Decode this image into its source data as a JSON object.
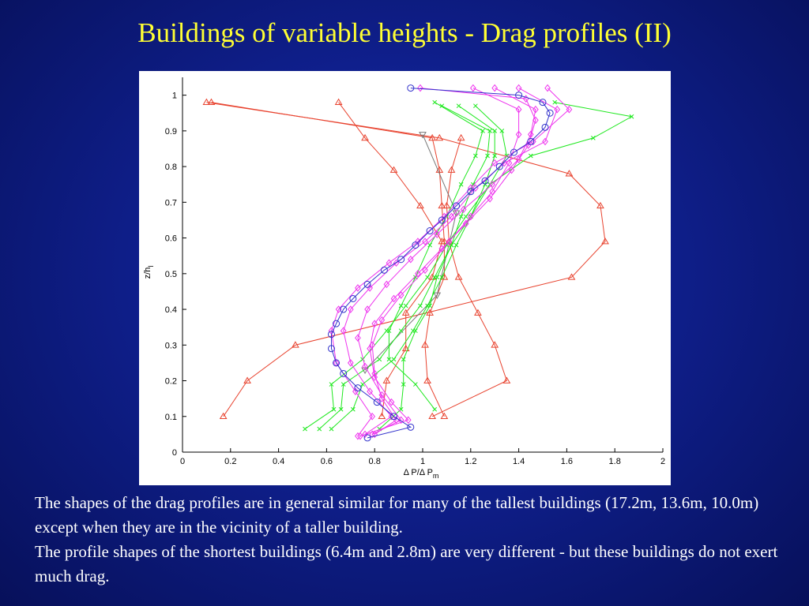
{
  "slide": {
    "title": "Buildings of variable heights - Drag profiles (II)",
    "paragraphs": [
      "The shapes of the drag profiles are in general similar for many of the tallest buildings (17.2m, 13.6m, 10.0m) except when they are in the vicinity of a taller building.",
      "The profile shapes of the shortest buildings (6.4m and 2.8m) are very different - but these buildings do not exert much drag."
    ]
  },
  "colors": {
    "background": "#0f1f8c",
    "title": "#ffff33",
    "text": "#ffffff",
    "red": "#e8432f",
    "green": "#1ee81e",
    "magenta": "#ee33ee",
    "blue": "#3333cc",
    "gray": "#777777"
  },
  "chart_data": {
    "type": "line",
    "title": "",
    "xlabel": "Δ P/Δ P",
    "xlabel_sub": "m",
    "ylabel": "z/h",
    "ylabel_sub": "l",
    "xlim": [
      0,
      2
    ],
    "ylim": [
      0,
      1.05
    ],
    "xticks": [
      "0",
      "0.2",
      "0.4",
      "0.6",
      "0.8",
      "1",
      "1.2",
      "1.4",
      "1.6",
      "1.8",
      "2"
    ],
    "yticks": [
      "0",
      "0.1",
      "0.2",
      "0.3",
      "0.4",
      "0.5",
      "0.6",
      "0.7",
      "0.8",
      "0.9",
      "1"
    ],
    "grid": false,
    "series": [
      {
        "color": "#e8432f",
        "marker": "triangle",
        "points": [
          [
            0.17,
            0.1
          ],
          [
            0.27,
            0.2
          ],
          [
            0.47,
            0.3
          ],
          [
            1.62,
            0.49
          ],
          [
            1.76,
            0.59
          ],
          [
            1.74,
            0.69
          ],
          [
            1.61,
            0.78
          ],
          [
            1.07,
            0.88
          ],
          [
            0.1,
            0.98
          ]
        ]
      },
      {
        "color": "#e8432f",
        "marker": "triangle",
        "points": [
          [
            0.83,
            0.1
          ],
          [
            0.85,
            0.2
          ],
          [
            0.93,
            0.29
          ],
          [
            0.93,
            0.39
          ],
          [
            1.04,
            0.49
          ],
          [
            1.08,
            0.59
          ],
          [
            0.99,
            0.69
          ],
          [
            0.88,
            0.79
          ],
          [
            0.76,
            0.88
          ],
          [
            0.65,
            0.98
          ]
        ]
      },
      {
        "color": "#e8432f",
        "marker": "triangle",
        "points": [
          [
            1.09,
            0.1
          ],
          [
            1.02,
            0.2
          ],
          [
            1.01,
            0.3
          ],
          [
            1.03,
            0.39
          ],
          [
            1.09,
            0.49
          ],
          [
            1.09,
            0.59
          ],
          [
            1.08,
            0.69
          ],
          [
            1.07,
            0.79
          ],
          [
            1.04,
            0.88
          ],
          [
            0.12,
            0.98
          ]
        ]
      },
      {
        "color": "#e8432f",
        "marker": "triangle",
        "points": [
          [
            1.04,
            0.1
          ],
          [
            1.35,
            0.2
          ],
          [
            1.3,
            0.3
          ],
          [
            1.23,
            0.39
          ],
          [
            1.15,
            0.49
          ],
          [
            1.11,
            0.59
          ],
          [
            1.1,
            0.69
          ],
          [
            1.12,
            0.79
          ],
          [
            1.16,
            0.88
          ]
        ]
      },
      {
        "color": "#777777",
        "marker": "triangle-down",
        "points": [
          [
            0.76,
            0.23
          ],
          [
            1.06,
            0.44
          ],
          [
            1.14,
            0.67
          ],
          [
            1.0,
            0.89
          ]
        ]
      },
      {
        "color": "#1ee81e",
        "marker": "x",
        "points": [
          [
            0.51,
            0.065
          ],
          [
            0.63,
            0.12
          ],
          [
            0.62,
            0.19
          ],
          [
            0.75,
            0.26
          ],
          [
            0.85,
            0.34
          ],
          [
            0.93,
            0.41
          ],
          [
            1.02,
            0.49
          ],
          [
            1.1,
            0.58
          ],
          [
            1.18,
            0.66
          ],
          [
            1.28,
            0.75
          ],
          [
            1.45,
            0.83
          ],
          [
            1.71,
            0.88
          ],
          [
            1.87,
            0.94
          ],
          [
            1.55,
            0.98
          ]
        ]
      },
      {
        "color": "#1ee81e",
        "marker": "x",
        "points": [
          [
            0.57,
            0.065
          ],
          [
            0.66,
            0.12
          ],
          [
            0.67,
            0.19
          ],
          [
            0.82,
            0.26
          ],
          [
            0.91,
            0.34
          ],
          [
            0.99,
            0.41
          ],
          [
            1.05,
            0.49
          ],
          [
            1.12,
            0.58
          ],
          [
            1.2,
            0.66
          ],
          [
            1.28,
            0.75
          ],
          [
            1.35,
            0.83
          ],
          [
            1.33,
            0.9
          ],
          [
            1.22,
            0.97
          ]
        ]
      },
      {
        "color": "#1ee81e",
        "marker": "x",
        "points": [
          [
            0.62,
            0.065
          ],
          [
            0.71,
            0.12
          ],
          [
            0.75,
            0.19
          ],
          [
            0.88,
            0.26
          ],
          [
            0.96,
            0.34
          ],
          [
            1.02,
            0.41
          ],
          [
            1.08,
            0.49
          ],
          [
            1.14,
            0.58
          ],
          [
            1.2,
            0.66
          ],
          [
            1.26,
            0.75
          ],
          [
            1.3,
            0.83
          ],
          [
            1.3,
            0.9
          ],
          [
            1.15,
            0.97
          ]
        ]
      },
      {
        "color": "#1ee81e",
        "marker": "x",
        "points": [
          [
            0.82,
            0.065
          ],
          [
            0.91,
            0.12
          ],
          [
            0.92,
            0.19
          ],
          [
            0.92,
            0.26
          ],
          [
            0.97,
            0.34
          ],
          [
            1.03,
            0.41
          ],
          [
            1.06,
            0.49
          ],
          [
            1.12,
            0.58
          ],
          [
            1.16,
            0.66
          ],
          [
            1.21,
            0.75
          ],
          [
            1.27,
            0.83
          ],
          [
            1.28,
            0.9
          ],
          [
            1.08,
            0.97
          ]
        ]
      },
      {
        "color": "#1ee81e",
        "marker": "x",
        "points": [
          [
            1.05,
            0.12
          ],
          [
            0.97,
            0.19
          ],
          [
            0.86,
            0.26
          ],
          [
            0.86,
            0.34
          ],
          [
            0.91,
            0.41
          ],
          [
            0.97,
            0.49
          ],
          [
            1.03,
            0.58
          ],
          [
            1.1,
            0.66
          ],
          [
            1.16,
            0.75
          ],
          [
            1.22,
            0.83
          ],
          [
            1.25,
            0.9
          ],
          [
            1.05,
            0.98
          ]
        ]
      },
      {
        "color": "#ee33ee",
        "marker": "diamond",
        "points": [
          [
            0.73,
            0.045
          ],
          [
            0.79,
            0.1
          ],
          [
            0.72,
            0.17
          ],
          [
            0.64,
            0.25
          ],
          [
            0.62,
            0.34
          ],
          [
            0.65,
            0.4
          ],
          [
            0.73,
            0.46
          ],
          [
            0.86,
            0.53
          ],
          [
            0.98,
            0.59
          ],
          [
            1.09,
            0.66
          ],
          [
            1.2,
            0.74
          ],
          [
            1.3,
            0.81
          ],
          [
            1.46,
            0.87
          ],
          [
            1.61,
            0.96
          ],
          [
            1.52,
            1.02
          ]
        ]
      },
      {
        "color": "#ee33ee",
        "marker": "diamond",
        "points": [
          [
            0.76,
            0.05
          ],
          [
            0.87,
            0.1
          ],
          [
            0.78,
            0.17
          ],
          [
            0.7,
            0.25
          ],
          [
            0.67,
            0.34
          ],
          [
            0.7,
            0.4
          ],
          [
            0.78,
            0.46
          ],
          [
            0.89,
            0.53
          ],
          [
            1.01,
            0.59
          ],
          [
            1.12,
            0.66
          ],
          [
            1.22,
            0.74
          ],
          [
            1.34,
            0.81
          ],
          [
            1.51,
            0.87
          ],
          [
            1.56,
            0.96
          ],
          [
            1.4,
            1.02
          ]
        ]
      },
      {
        "color": "#ee33ee",
        "marker": "diamond",
        "points": [
          [
            0.79,
            0.05
          ],
          [
            0.91,
            0.09
          ],
          [
            0.83,
            0.16
          ],
          [
            0.76,
            0.24
          ],
          [
            0.73,
            0.32
          ],
          [
            0.77,
            0.4
          ],
          [
            0.85,
            0.47
          ],
          [
            0.95,
            0.54
          ],
          [
            1.06,
            0.61
          ],
          [
            1.17,
            0.68
          ],
          [
            1.29,
            0.75
          ],
          [
            1.4,
            0.82
          ],
          [
            1.45,
            0.89
          ],
          [
            1.47,
            0.96
          ],
          [
            1.3,
            1.02
          ]
        ]
      },
      {
        "color": "#ee33ee",
        "marker": "diamond",
        "points": [
          [
            0.8,
            0.05
          ],
          [
            0.89,
            0.09
          ],
          [
            0.83,
            0.15
          ],
          [
            0.8,
            0.22
          ],
          [
            0.79,
            0.3
          ],
          [
            0.83,
            0.37
          ],
          [
            0.91,
            0.44
          ],
          [
            1.01,
            0.51
          ],
          [
            1.11,
            0.59
          ],
          [
            1.2,
            0.66
          ],
          [
            1.29,
            0.73
          ],
          [
            1.36,
            0.81
          ],
          [
            1.4,
            0.89
          ],
          [
            1.4,
            0.96
          ],
          [
            1.21,
            1.02
          ]
        ]
      },
      {
        "color": "#ee33ee",
        "marker": "diamond",
        "points": [
          [
            0.74,
            0.045
          ],
          [
            0.94,
            0.09
          ],
          [
            0.87,
            0.14
          ],
          [
            0.8,
            0.21
          ],
          [
            0.78,
            0.29
          ],
          [
            0.8,
            0.36
          ],
          [
            0.88,
            0.43
          ],
          [
            0.98,
            0.5
          ],
          [
            1.08,
            0.57
          ],
          [
            1.18,
            0.64
          ],
          [
            1.28,
            0.71
          ],
          [
            1.37,
            0.79
          ],
          [
            1.44,
            0.86
          ],
          [
            1.47,
            0.93
          ],
          [
            1.43,
            0.99
          ],
          [
            0.99,
            1.02
          ]
        ]
      },
      {
        "color": "#3333cc",
        "marker": "circle",
        "points": [
          [
            0.77,
            0.04
          ],
          [
            0.95,
            0.07
          ],
          [
            0.88,
            0.1
          ],
          [
            0.81,
            0.14
          ],
          [
            0.73,
            0.18
          ],
          [
            0.67,
            0.22
          ],
          [
            0.64,
            0.25
          ],
          [
            0.62,
            0.29
          ],
          [
            0.62,
            0.33
          ],
          [
            0.64,
            0.36
          ],
          [
            0.67,
            0.4
          ],
          [
            0.71,
            0.43
          ],
          [
            0.77,
            0.47
          ],
          [
            0.84,
            0.51
          ],
          [
            0.91,
            0.54
          ],
          [
            0.97,
            0.58
          ],
          [
            1.03,
            0.62
          ],
          [
            1.08,
            0.65
          ],
          [
            1.14,
            0.69
          ],
          [
            1.2,
            0.73
          ],
          [
            1.26,
            0.76
          ],
          [
            1.32,
            0.8
          ],
          [
            1.38,
            0.84
          ],
          [
            1.45,
            0.87
          ],
          [
            1.51,
            0.91
          ],
          [
            1.53,
            0.95
          ],
          [
            1.5,
            0.98
          ],
          [
            1.4,
            1.0
          ],
          [
            0.95,
            1.02
          ]
        ]
      }
    ]
  }
}
